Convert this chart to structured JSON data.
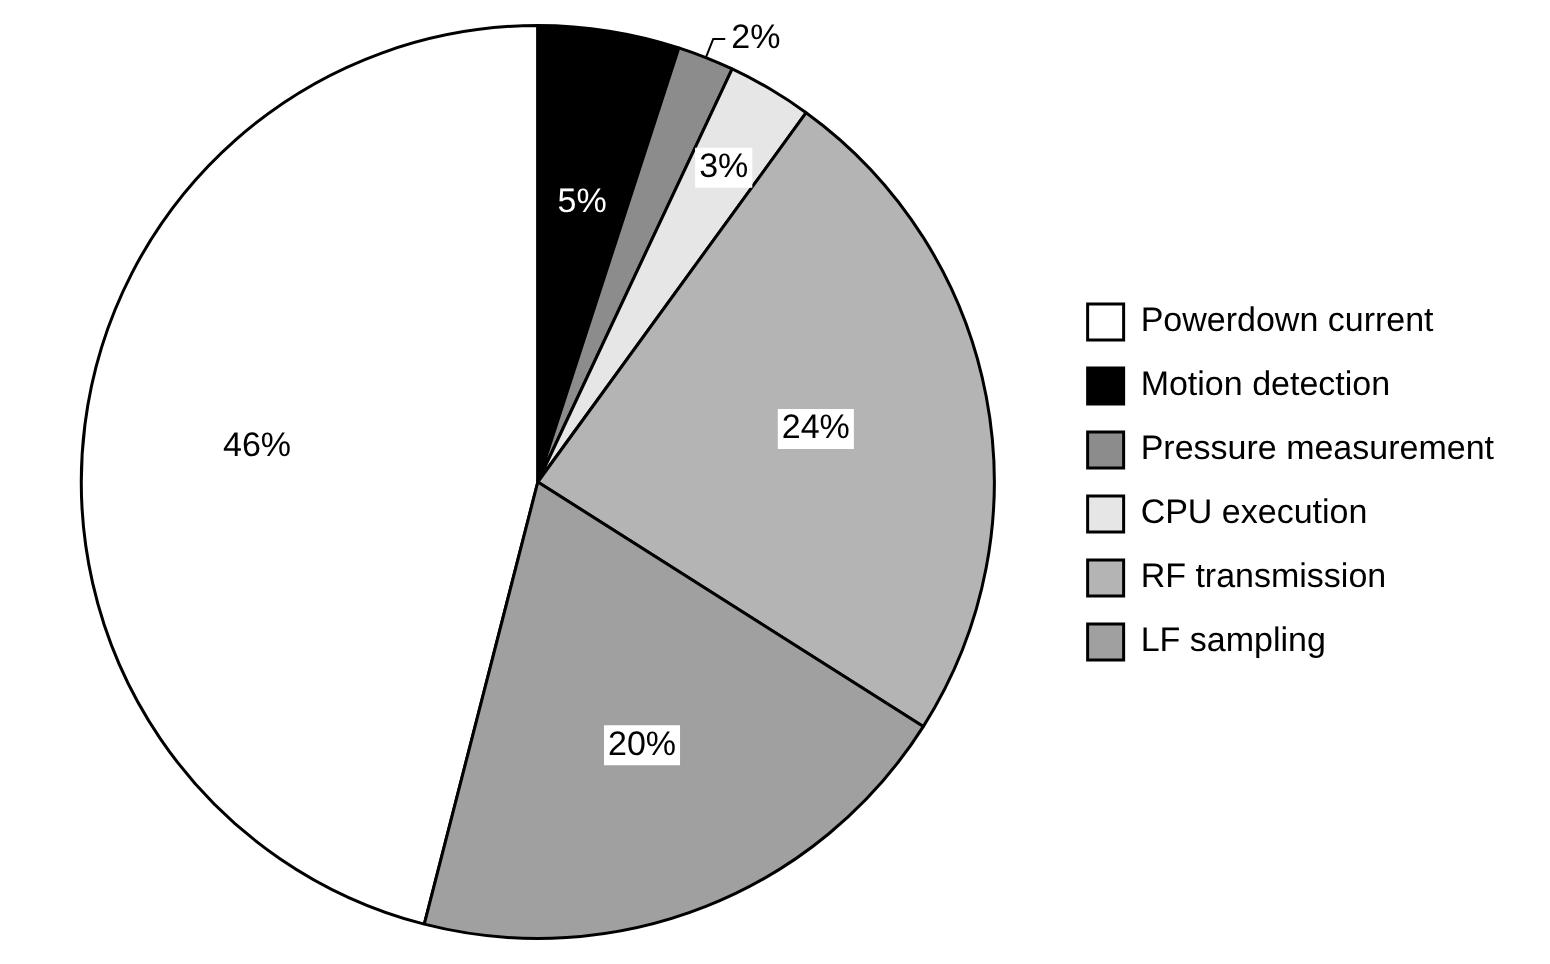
{
  "chart_data": {
    "type": "pie",
    "categories": [
      "Powerdown current",
      "Motion detection",
      "Pressure measurement",
      "CPU execution",
      "RF transmission",
      "LF sampling"
    ],
    "values": [
      46,
      5,
      2,
      3,
      24,
      20
    ],
    "colors": [
      "#ffffff",
      "#000000",
      "#8c8c8c",
      "#e6e6e6",
      "#b4b4b4",
      "#a0a0a0"
    ],
    "value_labels": [
      "46%",
      "5%",
      "2%",
      "3%",
      "24%",
      "20%"
    ],
    "legend": "right"
  }
}
